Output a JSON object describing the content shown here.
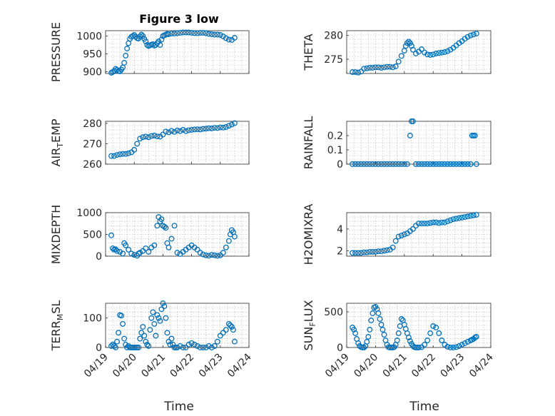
{
  "chart_data": [
    {
      "type": "scatter",
      "title": "Figure 3 low",
      "ylabel": "PRESSURE",
      "ylim": [
        895,
        1015
      ],
      "yticks": [
        900,
        950,
        1000
      ],
      "x": [
        19.2,
        19.25,
        19.3,
        19.35,
        19.4,
        19.45,
        19.5,
        19.55,
        19.6,
        19.65,
        19.7,
        19.75,
        19.8,
        19.85,
        19.9,
        19.95,
        20.0,
        20.05,
        20.1,
        20.15,
        20.2,
        20.25,
        20.3,
        20.35,
        20.4,
        20.45,
        20.5,
        20.55,
        20.6,
        20.65,
        20.7,
        20.75,
        20.8,
        20.85,
        20.9,
        20.95,
        21.0,
        21.05,
        21.1,
        21.15,
        21.2,
        21.3,
        21.4,
        21.5,
        21.6,
        21.7,
        21.8,
        21.9,
        22.0,
        22.1,
        22.2,
        22.3,
        22.4,
        22.5,
        22.6,
        22.7,
        22.8,
        22.9,
        23.0,
        23.1,
        23.2,
        23.3,
        23.4,
        23.5
      ],
      "y": [
        897,
        899,
        902,
        908,
        905,
        902,
        901,
        906,
        912,
        925,
        945,
        965,
        980,
        992,
        998,
        1000,
        1003,
        998,
        994,
        993,
        999,
        1004,
        1000,
        992,
        985,
        975,
        972,
        974,
        976,
        977,
        973,
        975,
        980,
        985,
        975,
        990,
        1000,
        1002,
        1004,
        1006,
        1005,
        1007,
        1007,
        1008,
        1009,
        1010,
        1010,
        1010,
        1009,
        1008,
        1008,
        1009,
        1009,
        1008,
        1006,
        1005,
        1004,
        1004,
        1003,
        999,
        994,
        990,
        989,
        995
      ]
    },
    {
      "type": "scatter",
      "ylabel": "THETA",
      "ylim": [
        272,
        281
      ],
      "yticks": [
        275,
        280
      ],
      "x": [
        19.2,
        19.3,
        19.4,
        19.5,
        19.6,
        19.7,
        19.8,
        19.9,
        20.0,
        20.1,
        20.2,
        20.3,
        20.4,
        20.5,
        20.6,
        20.7,
        20.8,
        20.9,
        21.0,
        21.05,
        21.1,
        21.15,
        21.2,
        21.25,
        21.3,
        21.4,
        21.5,
        21.6,
        21.7,
        21.8,
        21.9,
        22.0,
        22.1,
        22.2,
        22.3,
        22.4,
        22.5,
        22.6,
        22.7,
        22.8,
        22.9,
        23.0,
        23.1,
        23.2,
        23.3,
        23.4,
        23.5
      ],
      "y": [
        272.3,
        272.3,
        272.2,
        272.4,
        273.0,
        273.1,
        273.2,
        273.2,
        273.3,
        273.3,
        273.2,
        273.3,
        273.4,
        273.4,
        273.3,
        273.5,
        274.5,
        275.7,
        276.8,
        277.8,
        278.4,
        278.7,
        278.4,
        277.8,
        277.0,
        276.2,
        276.6,
        277.1,
        276.4,
        276.0,
        275.9,
        276.0,
        276.2,
        276.3,
        276.4,
        276.5,
        276.7,
        277.0,
        277.4,
        277.9,
        278.4,
        278.8,
        279.3,
        279.7,
        280.0,
        280.2,
        280.4
      ]
    },
    {
      "type": "scatter",
      "ylabel": "AIR_TEMP",
      "ylim": [
        260,
        281
      ],
      "yticks": [
        260,
        270,
        280
      ],
      "x": [
        19.2,
        19.3,
        19.4,
        19.5,
        19.6,
        19.7,
        19.8,
        19.9,
        20.0,
        20.1,
        20.2,
        20.3,
        20.4,
        20.5,
        20.6,
        20.7,
        20.8,
        20.9,
        21.0,
        21.1,
        21.2,
        21.3,
        21.4,
        21.5,
        21.6,
        21.7,
        21.8,
        21.9,
        22.0,
        22.1,
        22.2,
        22.3,
        22.4,
        22.5,
        22.6,
        22.7,
        22.8,
        22.9,
        23.0,
        23.1,
        23.2,
        23.3,
        23.4,
        23.5
      ],
      "y": [
        264,
        264,
        264.5,
        264.8,
        265,
        265,
        265.3,
        265.8,
        267,
        270,
        272.5,
        273.2,
        273.5,
        273.2,
        273.8,
        274,
        273.6,
        273.5,
        274.5,
        276,
        275.6,
        276.3,
        275.8,
        276.5,
        276.2,
        276.8,
        276.2,
        276.6,
        276.8,
        277,
        277.1,
        277,
        277.3,
        277.4,
        277.6,
        277.5,
        277.8,
        277.7,
        278.0,
        277.9,
        278.2,
        278.8,
        279.4,
        280.1
      ]
    },
    {
      "type": "scatter",
      "ylabel": "RAINFALL",
      "ylim": [
        0,
        0.3
      ],
      "yticks": [
        0,
        0.1,
        0.2
      ],
      "x": [
        19.2,
        19.3,
        19.4,
        19.5,
        19.6,
        19.7,
        19.8,
        19.9,
        20.0,
        20.1,
        20.2,
        20.3,
        20.4,
        20.5,
        20.6,
        20.7,
        20.8,
        20.9,
        21.0,
        21.1,
        21.2,
        21.25,
        21.3,
        21.4,
        21.5,
        21.6,
        21.7,
        21.8,
        21.9,
        22.0,
        22.1,
        22.2,
        22.3,
        22.4,
        22.5,
        22.6,
        22.7,
        22.8,
        22.9,
        23.0,
        23.1,
        23.2,
        23.3,
        23.35,
        23.4,
        23.45,
        23.5
      ],
      "y": [
        0,
        0,
        0,
        0,
        0,
        0,
        0,
        0,
        0,
        0,
        0,
        0,
        0,
        0,
        0,
        0,
        0,
        0,
        0,
        0,
        0.2,
        0.3,
        0.3,
        0,
        0,
        0,
        0,
        0,
        0,
        0,
        0,
        0,
        0,
        0,
        0,
        0,
        0,
        0,
        0,
        0,
        0,
        0,
        0,
        0.2,
        0.2,
        0.2,
        0
      ]
    },
    {
      "type": "scatter",
      "ylabel": "MIXDEPTH",
      "ylim": [
        0,
        1000
      ],
      "yticks": [
        0,
        500,
        1000
      ],
      "x": [
        19.2,
        19.25,
        19.3,
        19.35,
        19.4,
        19.5,
        19.6,
        19.65,
        19.7,
        19.8,
        19.9,
        20.0,
        20.1,
        20.15,
        20.2,
        20.3,
        20.4,
        20.5,
        20.6,
        20.7,
        20.8,
        20.85,
        20.9,
        20.95,
        21.0,
        21.05,
        21.1,
        21.15,
        21.2,
        21.3,
        21.4,
        21.5,
        21.6,
        21.7,
        21.8,
        21.9,
        22.0,
        22.1,
        22.2,
        22.3,
        22.4,
        22.5,
        22.6,
        22.7,
        22.8,
        22.9,
        23.0,
        23.1,
        23.2,
        23.3,
        23.35,
        23.4,
        23.45,
        23.5
      ],
      "y": [
        480,
        180,
        150,
        160,
        120,
        100,
        60,
        300,
        250,
        150,
        60,
        30,
        10,
        60,
        80,
        120,
        180,
        100,
        200,
        250,
        700,
        900,
        800,
        850,
        700,
        680,
        650,
        300,
        200,
        400,
        700,
        80,
        50,
        100,
        150,
        200,
        250,
        200,
        150,
        80,
        40,
        20,
        10,
        30,
        20,
        10,
        20,
        80,
        200,
        350,
        500,
        600,
        550,
        450
      ]
    },
    {
      "type": "scatter",
      "ylabel": "H2OMIXRA",
      "ylim": [
        1.5,
        5.5
      ],
      "yticks": [
        2,
        4
      ],
      "x": [
        19.2,
        19.3,
        19.4,
        19.5,
        19.6,
        19.7,
        19.8,
        19.9,
        20.0,
        20.1,
        20.2,
        20.3,
        20.4,
        20.5,
        20.6,
        20.7,
        20.8,
        20.9,
        21.0,
        21.1,
        21.2,
        21.3,
        21.4,
        21.5,
        21.6,
        21.7,
        21.8,
        21.9,
        22.0,
        22.1,
        22.2,
        22.3,
        22.4,
        22.5,
        22.6,
        22.7,
        22.8,
        22.9,
        23.0,
        23.1,
        23.2,
        23.3,
        23.4,
        23.5
      ],
      "y": [
        1.8,
        1.8,
        1.8,
        1.8,
        1.85,
        1.85,
        1.9,
        1.9,
        1.9,
        1.95,
        1.95,
        2.0,
        2.05,
        2.1,
        2.3,
        2.9,
        3.3,
        3.4,
        3.5,
        3.6,
        3.8,
        4.0,
        4.3,
        4.5,
        4.5,
        4.5,
        4.5,
        4.55,
        4.6,
        4.6,
        4.55,
        4.6,
        4.6,
        4.7,
        4.8,
        4.9,
        4.95,
        5.0,
        5.05,
        5.1,
        5.15,
        5.2,
        5.25,
        5.3
      ]
    },
    {
      "type": "scatter",
      "ylabel": "TERR_MSL",
      "ylim": [
        0,
        150
      ],
      "yticks": [
        0,
        100
      ],
      "x": [
        19.2,
        19.25,
        19.3,
        19.35,
        19.4,
        19.45,
        19.5,
        19.55,
        19.6,
        19.65,
        19.7,
        19.75,
        19.8,
        19.85,
        19.9,
        19.95,
        20.0,
        20.05,
        20.1,
        20.15,
        20.2,
        20.25,
        20.3,
        20.35,
        20.4,
        20.45,
        20.5,
        20.55,
        20.6,
        20.65,
        20.7,
        20.75,
        20.8,
        20.85,
        20.9,
        20.95,
        21.0,
        21.05,
        21.1,
        21.15,
        21.2,
        21.25,
        21.3,
        21.35,
        21.4,
        21.45,
        21.5,
        21.6,
        21.7,
        21.8,
        21.9,
        22.0,
        22.1,
        22.2,
        22.3,
        22.4,
        22.5,
        22.6,
        22.7,
        22.8,
        22.9,
        23.0,
        23.1,
        23.2,
        23.3,
        23.35,
        23.4,
        23.45,
        23.5
      ],
      "y": [
        5,
        10,
        5,
        0,
        20,
        50,
        110,
        108,
        80,
        30,
        10,
        0,
        5,
        0,
        0,
        0,
        0,
        0,
        0,
        0,
        30,
        50,
        70,
        40,
        20,
        10,
        5,
        60,
        100,
        120,
        80,
        40,
        110,
        100,
        90,
        130,
        150,
        140,
        100,
        50,
        20,
        10,
        30,
        10,
        0,
        0,
        0,
        5,
        0,
        0,
        10,
        15,
        10,
        5,
        0,
        0,
        0,
        5,
        0,
        5,
        20,
        40,
        50,
        60,
        80,
        75,
        70,
        60,
        20
      ]
    },
    {
      "type": "scatter",
      "ylabel": "SUN_FLUX",
      "ylim": [
        0,
        620
      ],
      "yticks": [
        0,
        500
      ],
      "x": [
        19.2,
        19.25,
        19.3,
        19.35,
        19.4,
        19.45,
        19.5,
        19.55,
        19.6,
        19.65,
        19.7,
        19.75,
        19.8,
        19.85,
        19.9,
        19.95,
        20.0,
        20.05,
        20.1,
        20.15,
        20.2,
        20.25,
        20.3,
        20.35,
        20.4,
        20.45,
        20.5,
        20.55,
        20.6,
        20.65,
        20.7,
        20.75,
        20.8,
        20.85,
        20.9,
        20.95,
        21.0,
        21.05,
        21.1,
        21.15,
        21.2,
        21.25,
        21.3,
        21.35,
        21.4,
        21.45,
        21.5,
        21.6,
        21.7,
        21.8,
        21.9,
        22.0,
        22.1,
        22.2,
        22.3,
        22.4,
        22.5,
        22.6,
        22.7,
        22.8,
        22.9,
        23.0,
        23.1,
        23.2,
        23.3,
        23.35,
        23.4,
        23.45,
        23.5
      ],
      "y": [
        280,
        250,
        200,
        120,
        60,
        20,
        5,
        0,
        0,
        20,
        80,
        150,
        250,
        380,
        480,
        560,
        570,
        540,
        480,
        400,
        320,
        250,
        180,
        100,
        40,
        5,
        0,
        0,
        0,
        5,
        40,
        100,
        200,
        300,
        400,
        380,
        320,
        260,
        200,
        140,
        90,
        50,
        20,
        5,
        0,
        0,
        0,
        5,
        40,
        100,
        200,
        300,
        280,
        200,
        100,
        40,
        10,
        0,
        0,
        5,
        20,
        40,
        60,
        80,
        100,
        110,
        120,
        140,
        150
      ]
    }
  ],
  "x_axis": {
    "ticks": [
      "04/19",
      "04/20",
      "04/21",
      "04/22",
      "04/23",
      "04/24"
    ],
    "xlim": [
      "04/19",
      "04/24"
    ],
    "label": "Time"
  }
}
